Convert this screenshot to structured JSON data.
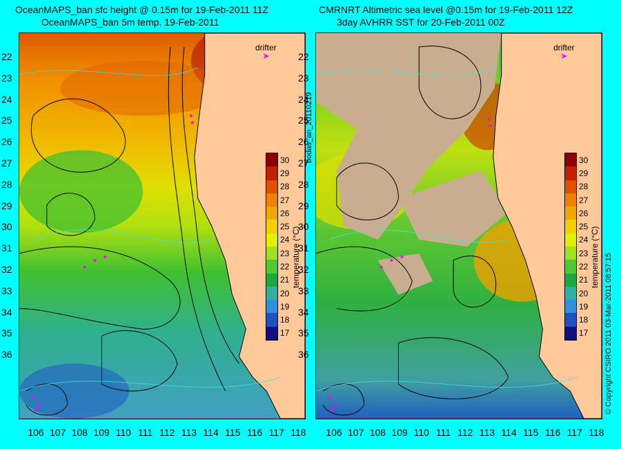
{
  "left": {
    "title_line1": "OceanMAPS_ban sfc height @ 0.15m for 19-Feb-2011 11Z",
    "title_line2": "OceanMAPS_ban 5m temp. 19-Feb-2011"
  },
  "right": {
    "title_line1": "CMRNRT Altimetric sea level  @0.15m  for 19-Feb-2011 12Z",
    "title_line2": "3day AVHRR SST for 20-Feb-2011 00Z"
  },
  "latitudes": [
    "22",
    "23",
    "24",
    "25",
    "26",
    "27",
    "28",
    "29",
    "30",
    "31",
    "32",
    "33",
    "34",
    "35",
    "36"
  ],
  "longitudes": [
    "106",
    "107",
    "108",
    "109",
    "110",
    "111",
    "112",
    "113",
    "114",
    "115",
    "116",
    "117",
    "118"
  ],
  "colorbar": {
    "ticks": [
      "30",
      "29",
      "28",
      "27",
      "26",
      "25",
      "24",
      "23",
      "22",
      "21",
      "20",
      "19",
      "18",
      "17"
    ],
    "label": "temperature (°C)",
    "colors": [
      "#8b0000",
      "#c22000",
      "#e05000",
      "#f08000",
      "#f0a800",
      "#f0d000",
      "#e0f000",
      "#a0e020",
      "#50c830",
      "#20a840",
      "#30b0a0",
      "#3090e0",
      "#2050c0",
      "#101080"
    ]
  },
  "drifter_label": "drifter",
  "side_label": "bodas_an_20110219",
  "copyright": "© Copyright CSIRO 2011   03-Mar-2011 08:57:15"
}
